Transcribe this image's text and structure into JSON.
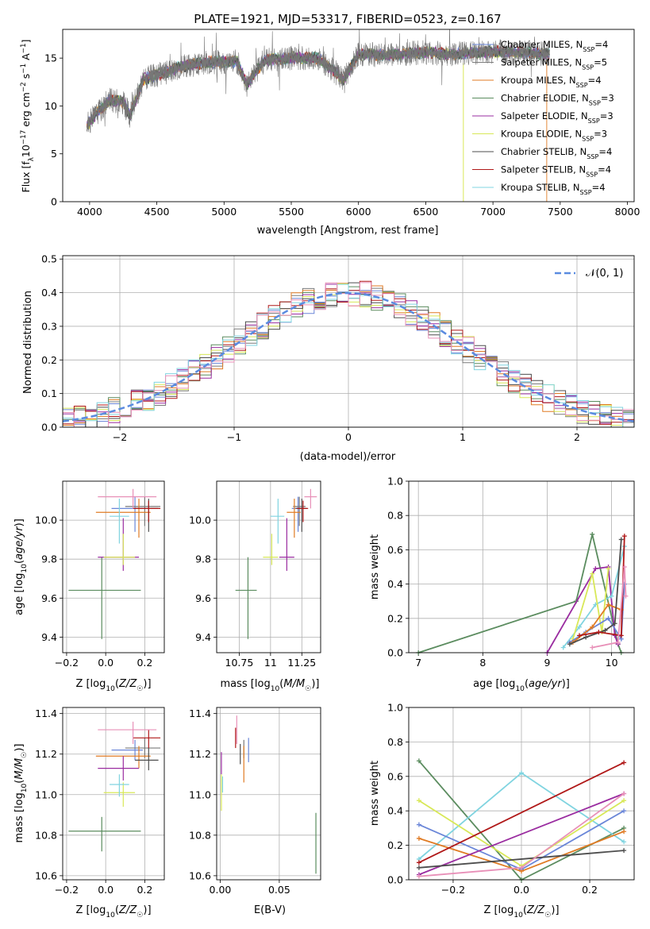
{
  "title": "PLATE=1921, MJD=53317, FIBERID=0523, z=0.167",
  "colors": {
    "chabrier_miles": "#6a86d8",
    "salpeter_miles": "#7a7a7a",
    "kroupa_miles": "#e07b24",
    "chabrier_elodie": "#5b8c5f",
    "salpeter_elodie": "#9a2ca0",
    "kroupa_elodie": "#d8e858",
    "chabrier_stelib": "#4d4d4d",
    "salpeter_stelib": "#b01818",
    "kroupa_stelib": "#80d4e0",
    "normal_curve": "#5a8be0",
    "pink_series": "#e890b8"
  },
  "chart_data": [
    {
      "type": "line",
      "xlabel": "wavelength [Angstrom, rest frame]",
      "ylabel": "Flux [f_λ10^-17 erg cm^-2 s^-1 A^-1]",
      "xlim": [
        3800,
        8050
      ],
      "ylim": [
        0,
        18
      ],
      "xticks": [
        4000,
        4500,
        5000,
        5500,
        6000,
        6500,
        7000,
        7500,
        8000
      ],
      "yticks": [
        0,
        5,
        10,
        15
      ],
      "legend_position": "upper right",
      "legend": [
        "Chabrier MILES, N_SSP=4",
        "Salpeter MILES, N_SSP=5",
        "Kroupa MILES, N_SSP=4",
        "Chabrier ELODIE, N_SSP=3",
        "Salpeter ELODIE, N_SSP=3",
        "Kroupa ELODIE, N_SSP=3",
        "Chabrier STELIB, N_SSP=4",
        "Salpeter STELIB, N_SSP=4",
        "Kroupa STELIB, N_SSP=4"
      ],
      "continuum": {
        "x": [
          3980,
          4050,
          4150,
          4250,
          4300,
          4400,
          4500,
          4700,
          4900,
          5100,
          5170,
          5300,
          5500,
          5700,
          5890,
          6000,
          6200,
          6500,
          6700,
          7000,
          7200,
          7400
        ],
        "y": [
          8.0,
          9.2,
          10.6,
          10.4,
          9.0,
          12.8,
          13.2,
          14.2,
          14.6,
          14.6,
          12.2,
          14.8,
          15.0,
          15.0,
          12.8,
          15.4,
          15.3,
          15.6,
          15.4,
          15.7,
          15.6,
          15.4
        ]
      },
      "model_endpoints": {
        "salpeter_elodie_drop_x": 6780,
        "kroupa_miles_drop_x": 7400
      }
    },
    {
      "type": "histogram",
      "xlabel": "(data-model)/error",
      "ylabel": "Normed distribution",
      "xlim": [
        -2.5,
        2.5
      ],
      "ylim": [
        0,
        0.51
      ],
      "xticks": [
        -2,
        -1,
        0,
        1,
        2
      ],
      "yticks": [
        0.0,
        0.1,
        0.2,
        0.3,
        0.4,
        0.5
      ],
      "legend": [
        "𝒩(0, 1)"
      ],
      "bin_width": 0.1
    },
    {
      "type": "errorbar",
      "xlabel": "Z [log10(Z/Z☉)]",
      "ylabel": "age  [log10(age/yr)]",
      "xlim": [
        -0.22,
        0.3
      ],
      "ylim": [
        9.32,
        10.2
      ],
      "xticks": [
        -0.2,
        0.0,
        0.2
      ],
      "yticks": [
        9.4,
        9.6,
        9.8,
        10.0
      ],
      "points": [
        {
          "model": "chabrier_miles",
          "x": 0.15,
          "y": 10.06,
          "xerr": [
            0.12,
            0.04
          ],
          "yerr": [
            0.12,
            0.06
          ]
        },
        {
          "model": "salpeter_miles",
          "x": 0.2,
          "y": 10.07,
          "xerr": [
            0.1,
            0.08
          ],
          "yerr": [
            0.1,
            0.05
          ]
        },
        {
          "model": "kroupa_miles",
          "x": 0.17,
          "y": 10.04,
          "xerr": [
            0.22,
            0.06
          ],
          "yerr": [
            0.13,
            0.07
          ]
        },
        {
          "model": "chabrier_elodie",
          "x": -0.02,
          "y": 9.64,
          "xerr": [
            0.17,
            0.2
          ],
          "yerr": [
            0.25,
            0.17
          ]
        },
        {
          "model": "salpeter_elodie",
          "x": 0.09,
          "y": 9.81,
          "xerr": [
            0.13,
            0.08
          ],
          "yerr": [
            0.07,
            0.2
          ]
        },
        {
          "model": "kroupa_elodie",
          "x": 0.09,
          "y": 9.81,
          "xerr": [
            0.1,
            0.06
          ],
          "yerr": [
            0.04,
            0.12
          ]
        },
        {
          "model": "chabrier_stelib",
          "x": 0.22,
          "y": 10.06,
          "xerr": [
            0.07,
            0.05
          ],
          "yerr": [
            0.12,
            0.05
          ]
        },
        {
          "model": "salpeter_stelib",
          "x": 0.22,
          "y": 10.06,
          "xerr": [
            0.08,
            0.06
          ],
          "yerr": [
            0.07,
            0.04
          ]
        },
        {
          "model": "kroupa_stelib",
          "x": 0.07,
          "y": 10.02,
          "xerr": [
            0.05,
            0.05
          ],
          "yerr": [
            0.14,
            0.09
          ]
        },
        {
          "model": "pink",
          "x": 0.14,
          "y": 10.12,
          "xerr": [
            0.18,
            0.12
          ],
          "yerr": [
            0.06,
            0.04
          ]
        }
      ]
    },
    {
      "type": "errorbar",
      "xlabel": "mass [log10(M/M☉)]",
      "ylabel": "",
      "xlim": [
        10.57,
        11.4
      ],
      "ylim": [
        9.32,
        10.2
      ],
      "xticks": [
        10.75,
        11.0,
        11.25
      ],
      "yticks": [
        9.4,
        9.6,
        9.8,
        10.0
      ],
      "points": [
        {
          "model": "chabrier_miles",
          "x": 11.22,
          "y": 10.06,
          "xerr": [
            0.05,
            0.05
          ],
          "yerr": [
            0.12,
            0.06
          ]
        },
        {
          "model": "salpeter_miles",
          "x": 11.23,
          "y": 10.07,
          "xerr": [
            0.05,
            0.05
          ],
          "yerr": [
            0.1,
            0.05
          ]
        },
        {
          "model": "kroupa_miles",
          "x": 11.19,
          "y": 10.04,
          "xerr": [
            0.06,
            0.05
          ],
          "yerr": [
            0.13,
            0.07
          ]
        },
        {
          "model": "chabrier_elodie",
          "x": 10.82,
          "y": 9.64,
          "xerr": [
            0.1,
            0.07
          ],
          "yerr": [
            0.25,
            0.17
          ]
        },
        {
          "model": "salpeter_elodie",
          "x": 11.13,
          "y": 9.81,
          "xerr": [
            0.06,
            0.06
          ],
          "yerr": [
            0.07,
            0.2
          ]
        },
        {
          "model": "kroupa_elodie",
          "x": 11.01,
          "y": 9.81,
          "xerr": [
            0.07,
            0.05
          ],
          "yerr": [
            0.04,
            0.12
          ]
        },
        {
          "model": "chabrier_stelib",
          "x": 11.25,
          "y": 10.06,
          "xerr": [
            0.05,
            0.04
          ],
          "yerr": [
            0.12,
            0.05
          ]
        },
        {
          "model": "salpeter_stelib",
          "x": 11.26,
          "y": 10.06,
          "xerr": [
            0.05,
            0.04
          ],
          "yerr": [
            0.07,
            0.04
          ]
        },
        {
          "model": "kroupa_stelib",
          "x": 11.06,
          "y": 10.02,
          "xerr": [
            0.06,
            0.05
          ],
          "yerr": [
            0.14,
            0.09
          ]
        },
        {
          "model": "pink",
          "x": 11.32,
          "y": 10.12,
          "xerr": [
            0.05,
            0.05
          ],
          "yerr": [
            0.06,
            0.04
          ]
        }
      ]
    },
    {
      "type": "line",
      "xlabel": "age  [log10(age/yr)]",
      "ylabel": "mass weight",
      "xlim": [
        6.85,
        10.35
      ],
      "ylim": [
        0,
        1.0
      ],
      "xticks": [
        7,
        8,
        9,
        10
      ],
      "yticks": [
        0.0,
        0.2,
        0.4,
        0.6,
        0.8,
        1.0
      ],
      "series": [
        {
          "model": "chabrier_elodie",
          "x": [
            7.0,
            9.45,
            9.7,
            10.1,
            10.15
          ],
          "y": [
            0.0,
            0.3,
            0.69,
            0.05,
            0.0
          ]
        },
        {
          "model": "salpeter_elodie",
          "x": [
            9.0,
            9.75,
            9.95,
            10.05,
            10.1
          ],
          "y": [
            0.0,
            0.49,
            0.5,
            0.1,
            0.05
          ]
        },
        {
          "model": "kroupa_stelib",
          "x": [
            9.25,
            9.5,
            9.75,
            10.0,
            10.2
          ],
          "y": [
            0.03,
            0.15,
            0.28,
            0.33,
            0.62
          ]
        },
        {
          "model": "kroupa_elodie",
          "x": [
            9.4,
            9.7,
            9.85,
            9.95
          ],
          "y": [
            0.08,
            0.46,
            0.12,
            0.49
          ]
        },
        {
          "model": "chabrier_miles",
          "x": [
            9.35,
            9.6,
            9.95,
            10.15,
            10.2
          ],
          "y": [
            0.06,
            0.12,
            0.2,
            0.08,
            0.4
          ]
        },
        {
          "model": "kroupa_miles",
          "x": [
            9.4,
            9.7,
            9.95,
            10.15
          ],
          "y": [
            0.06,
            0.15,
            0.28,
            0.25
          ]
        },
        {
          "model": "chabrier_stelib",
          "x": [
            9.35,
            9.6,
            9.9,
            10.05,
            10.15
          ],
          "y": [
            0.05,
            0.09,
            0.13,
            0.17,
            0.66
          ]
        },
        {
          "model": "salpeter_stelib",
          "x": [
            9.5,
            9.8,
            10.15,
            10.2
          ],
          "y": [
            0.1,
            0.12,
            0.1,
            0.68
          ]
        },
        {
          "model": "pink",
          "x": [
            9.7,
            10.1,
            10.2,
            10.22
          ],
          "y": [
            0.03,
            0.06,
            0.5,
            0.33
          ]
        }
      ]
    },
    {
      "type": "errorbar",
      "xlabel": "Z [log10(Z/Z☉)]",
      "ylabel": "mass [log10(M/M☉)]",
      "xlim": [
        -0.22,
        0.3
      ],
      "ylim": [
        10.58,
        11.43
      ],
      "xticks": [
        -0.2,
        0.0,
        0.2
      ],
      "yticks": [
        10.6,
        10.8,
        11.0,
        11.2,
        11.4
      ],
      "points": [
        {
          "model": "chabrier_miles",
          "x": 0.15,
          "y": 11.22,
          "xerr": [
            0.12,
            0.04
          ],
          "yerr": [
            0.05,
            0.05
          ]
        },
        {
          "model": "salpeter_miles",
          "x": 0.2,
          "y": 11.23,
          "xerr": [
            0.1,
            0.08
          ],
          "yerr": [
            0.05,
            0.05
          ]
        },
        {
          "model": "kroupa_miles",
          "x": 0.17,
          "y": 11.19,
          "xerr": [
            0.22,
            0.06
          ],
          "yerr": [
            0.06,
            0.05
          ]
        },
        {
          "model": "chabrier_elodie",
          "x": -0.02,
          "y": 10.82,
          "xerr": [
            0.17,
            0.2
          ],
          "yerr": [
            0.1,
            0.07
          ]
        },
        {
          "model": "salpeter_elodie",
          "x": 0.09,
          "y": 11.13,
          "xerr": [
            0.13,
            0.08
          ],
          "yerr": [
            0.06,
            0.06
          ]
        },
        {
          "model": "kroupa_elodie",
          "x": 0.09,
          "y": 11.01,
          "xerr": [
            0.1,
            0.06
          ],
          "yerr": [
            0.07,
            0.05
          ]
        },
        {
          "model": "chabrier_stelib",
          "x": 0.22,
          "y": 11.17,
          "xerr": [
            0.07,
            0.05
          ],
          "yerr": [
            0.05,
            0.06
          ]
        },
        {
          "model": "salpeter_stelib",
          "x": 0.22,
          "y": 11.28,
          "xerr": [
            0.08,
            0.06
          ],
          "yerr": [
            0.05,
            0.04
          ]
        },
        {
          "model": "kroupa_stelib",
          "x": 0.07,
          "y": 11.05,
          "xerr": [
            0.05,
            0.05
          ],
          "yerr": [
            0.06,
            0.05
          ]
        },
        {
          "model": "pink",
          "x": 0.14,
          "y": 11.32,
          "xerr": [
            0.18,
            0.12
          ],
          "yerr": [
            0.07,
            0.04
          ]
        }
      ]
    },
    {
      "type": "errorbar",
      "xlabel": "E(B-V)",
      "ylabel": "",
      "xlim": [
        -0.003,
        0.085
      ],
      "ylim": [
        10.58,
        11.43
      ],
      "xticks": [
        0.0,
        0.05
      ],
      "yticks": [
        10.6,
        10.8,
        11.0,
        11.2,
        11.4
      ],
      "points": [
        {
          "model": "chabrier_miles",
          "x": 0.024,
          "y": 11.22,
          "xerr": [
            0,
            0
          ],
          "yerr": [
            0.06,
            0.06
          ]
        },
        {
          "model": "salpeter_miles",
          "x": 0.02,
          "y": 11.22,
          "xerr": [
            0,
            0
          ],
          "yerr": [
            0.04,
            0.05
          ]
        },
        {
          "model": "kroupa_miles",
          "x": 0.02,
          "y": 11.19,
          "xerr": [
            0,
            0
          ],
          "yerr": [
            0.13,
            0.05
          ]
        },
        {
          "model": "chabrier_elodie",
          "x": 0.081,
          "y": 10.76,
          "xerr": [
            0,
            0
          ],
          "yerr": [
            0.15,
            0.15
          ]
        },
        {
          "model": "salpeter_elodie",
          "x": 0.001,
          "y": 11.16,
          "xerr": [
            0,
            0
          ],
          "yerr": [
            0.06,
            0.05
          ]
        },
        {
          "model": "kroupa_elodie",
          "x": 0.001,
          "y": 11.01,
          "xerr": [
            0,
            0
          ],
          "yerr": [
            0.09,
            0.09
          ]
        },
        {
          "model": "chabrier_stelib",
          "x": 0.017,
          "y": 11.2,
          "xerr": [
            0,
            0
          ],
          "yerr": [
            0.05,
            0.05
          ]
        },
        {
          "model": "salpeter_stelib",
          "x": 0.013,
          "y": 11.28,
          "xerr": [
            0,
            0
          ],
          "yerr": [
            0.05,
            0.05
          ]
        },
        {
          "model": "kroupa_stelib",
          "x": 0.002,
          "y": 11.05,
          "xerr": [
            0,
            0
          ],
          "yerr": [
            0.04,
            0.04
          ]
        },
        {
          "model": "pink",
          "x": 0.014,
          "y": 11.32,
          "xerr": [
            0,
            0
          ],
          "yerr": [
            0.07,
            0.07
          ]
        }
      ]
    },
    {
      "type": "line",
      "xlabel": "Z [log10(Z/Z☉)]",
      "ylabel": "mass weight",
      "xlim": [
        -0.33,
        0.33
      ],
      "ylim": [
        0,
        1.0
      ],
      "xticks": [
        -0.2,
        0.0,
        0.2
      ],
      "yticks": [
        0.0,
        0.2,
        0.4,
        0.6,
        0.8,
        1.0
      ],
      "series": [
        {
          "model": "chabrier_elodie",
          "x": [
            -0.3,
            0.0,
            0.3
          ],
          "y": [
            0.69,
            0.0,
            0.3
          ]
        },
        {
          "model": "kroupa_stelib",
          "x": [
            -0.3,
            0.0,
            0.3
          ],
          "y": [
            0.12,
            0.62,
            0.22
          ]
        },
        {
          "model": "kroupa_elodie",
          "x": [
            -0.3,
            0.0,
            0.3
          ],
          "y": [
            0.46,
            0.08,
            0.46
          ]
        },
        {
          "model": "chabrier_miles",
          "x": [
            -0.3,
            0.0,
            0.3
          ],
          "y": [
            0.32,
            0.06,
            0.4
          ]
        },
        {
          "model": "kroupa_miles",
          "x": [
            -0.3,
            0.0,
            0.3
          ],
          "y": [
            0.24,
            0.05,
            0.28
          ]
        },
        {
          "model": "salpeter_elodie",
          "x": [
            -0.3,
            0.3
          ],
          "y": [
            0.03,
            0.5
          ]
        },
        {
          "model": "chabrier_stelib",
          "x": [
            -0.3,
            0.3
          ],
          "y": [
            0.07,
            0.17
          ]
        },
        {
          "model": "salpeter_stelib",
          "x": [
            -0.3,
            0.3
          ],
          "y": [
            0.1,
            0.68
          ]
        },
        {
          "model": "pink",
          "x": [
            -0.3,
            0.0,
            0.3
          ],
          "y": [
            0.02,
            0.07,
            0.5
          ]
        }
      ]
    }
  ]
}
